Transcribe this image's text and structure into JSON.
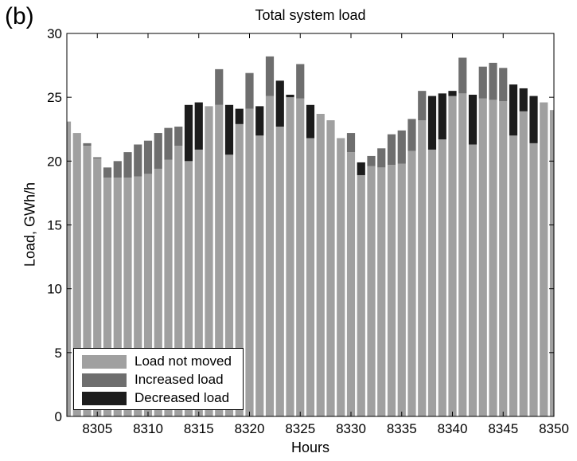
{
  "panel_label": "(b)",
  "chart_data": {
    "type": "bar",
    "stacked": true,
    "title": "Total system load",
    "xlabel": "Hours",
    "ylabel": "Load, GWh/h",
    "xlim": [
      8302,
      8350
    ],
    "ylim": [
      0,
      30
    ],
    "xticks": [
      8305,
      8310,
      8315,
      8320,
      8325,
      8330,
      8335,
      8340,
      8345,
      8350
    ],
    "yticks": [
      0,
      5,
      10,
      15,
      20,
      25,
      30
    ],
    "grid": false,
    "legend_position": "bottom-left",
    "colors": {
      "not_moved": "#a0a0a0",
      "increased": "#6e6e6e",
      "decreased": "#1c1c1c"
    },
    "x": [
      8302,
      8303,
      8304,
      8305,
      8306,
      8307,
      8308,
      8309,
      8310,
      8311,
      8312,
      8313,
      8314,
      8315,
      8316,
      8317,
      8318,
      8319,
      8320,
      8321,
      8322,
      8323,
      8324,
      8325,
      8326,
      8327,
      8328,
      8329,
      8330,
      8331,
      8332,
      8333,
      8334,
      8335,
      8336,
      8337,
      8338,
      8339,
      8340,
      8341,
      8342,
      8343,
      8344,
      8345,
      8346,
      8347,
      8348,
      8349,
      8350
    ],
    "series": [
      {
        "name": "Load not moved",
        "values": [
          23.1,
          22.2,
          21.2,
          20.2,
          18.7,
          18.7,
          18.7,
          18.8,
          19.0,
          19.4,
          20.1,
          21.2,
          20.0,
          20.9,
          24.3,
          24.4,
          20.5,
          22.9,
          24.1,
          22.0,
          25.1,
          22.7,
          25.0,
          24.9,
          21.8,
          23.7,
          23.2,
          21.8,
          20.7,
          18.9,
          19.6,
          19.5,
          19.7,
          19.8,
          20.8,
          23.2,
          20.9,
          21.7,
          25.1,
          25.3,
          21.3,
          24.9,
          24.8,
          24.7,
          22.0,
          23.9,
          21.4,
          24.6,
          24.0
        ]
      },
      {
        "name": "Increased load",
        "values": [
          0,
          0,
          0.2,
          0.1,
          0.8,
          1.3,
          2.0,
          2.5,
          2.6,
          2.8,
          2.5,
          1.5,
          0,
          0,
          0,
          2.8,
          0,
          0,
          2.8,
          0,
          3.1,
          0,
          0,
          2.7,
          0,
          0,
          0,
          0,
          1.5,
          0,
          0.8,
          1.5,
          2.4,
          2.6,
          2.5,
          2.3,
          0,
          0,
          0,
          2.8,
          0,
          2.5,
          2.9,
          2.6,
          0,
          0,
          0,
          0,
          0
        ]
      },
      {
        "name": "Decreased load",
        "values": [
          0,
          0,
          0,
          0,
          0,
          0,
          0,
          0,
          0,
          0,
          0,
          0,
          4.4,
          3.7,
          0,
          0,
          3.9,
          1.2,
          0,
          2.3,
          0,
          3.6,
          0.2,
          0,
          2.6,
          0,
          0,
          0,
          0,
          1.0,
          0,
          0,
          0,
          0,
          0,
          0,
          4.2,
          3.6,
          0.4,
          0,
          3.9,
          0,
          0,
          0,
          4.0,
          1.8,
          3.7,
          0,
          0
        ]
      }
    ]
  }
}
